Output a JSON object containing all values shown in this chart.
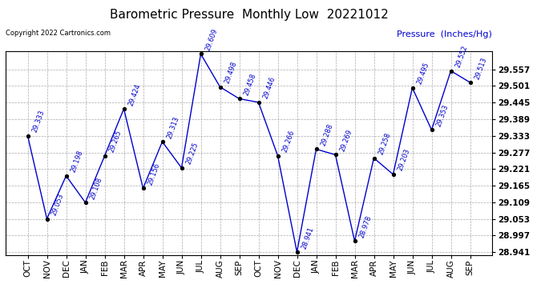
{
  "title": "Barometric Pressure  Monthly Low  20221012",
  "ylabel": "Pressure  (Inches/Hg)",
  "copyright_text": "Copyright 2022 Cartronics.com",
  "months": [
    "OCT",
    "NOV",
    "DEC",
    "JAN",
    "FEB",
    "MAR",
    "APR",
    "MAY",
    "JUN",
    "JUL",
    "AUG",
    "SEP",
    "OCT",
    "NOV",
    "DEC",
    "JAN",
    "FEB",
    "MAR",
    "APR",
    "MAY",
    "JUN",
    "JUL",
    "AUG",
    "SEP"
  ],
  "values": [
    29.333,
    29.053,
    29.198,
    29.108,
    29.265,
    29.424,
    29.156,
    29.313,
    29.225,
    29.609,
    29.498,
    29.458,
    29.446,
    29.266,
    28.941,
    29.288,
    29.269,
    28.978,
    29.258,
    29.203,
    29.495,
    29.353,
    29.552,
    29.513
  ],
  "line_color": "#0000CC",
  "marker_color": "#000000",
  "label_color": "#0000CC",
  "grid_color": "#AAAAAA",
  "background_color": "#FFFFFF",
  "title_color": "#000000",
  "ylabel_color": "#0000CC",
  "copyright_color": "#000000",
  "ylim_min": 28.941,
  "ylim_max": 29.609,
  "ytick_step": 0.056,
  "title_fontsize": 11,
  "label_fontsize": 6,
  "tick_fontsize": 7.5,
  "ylabel_fontsize": 8
}
